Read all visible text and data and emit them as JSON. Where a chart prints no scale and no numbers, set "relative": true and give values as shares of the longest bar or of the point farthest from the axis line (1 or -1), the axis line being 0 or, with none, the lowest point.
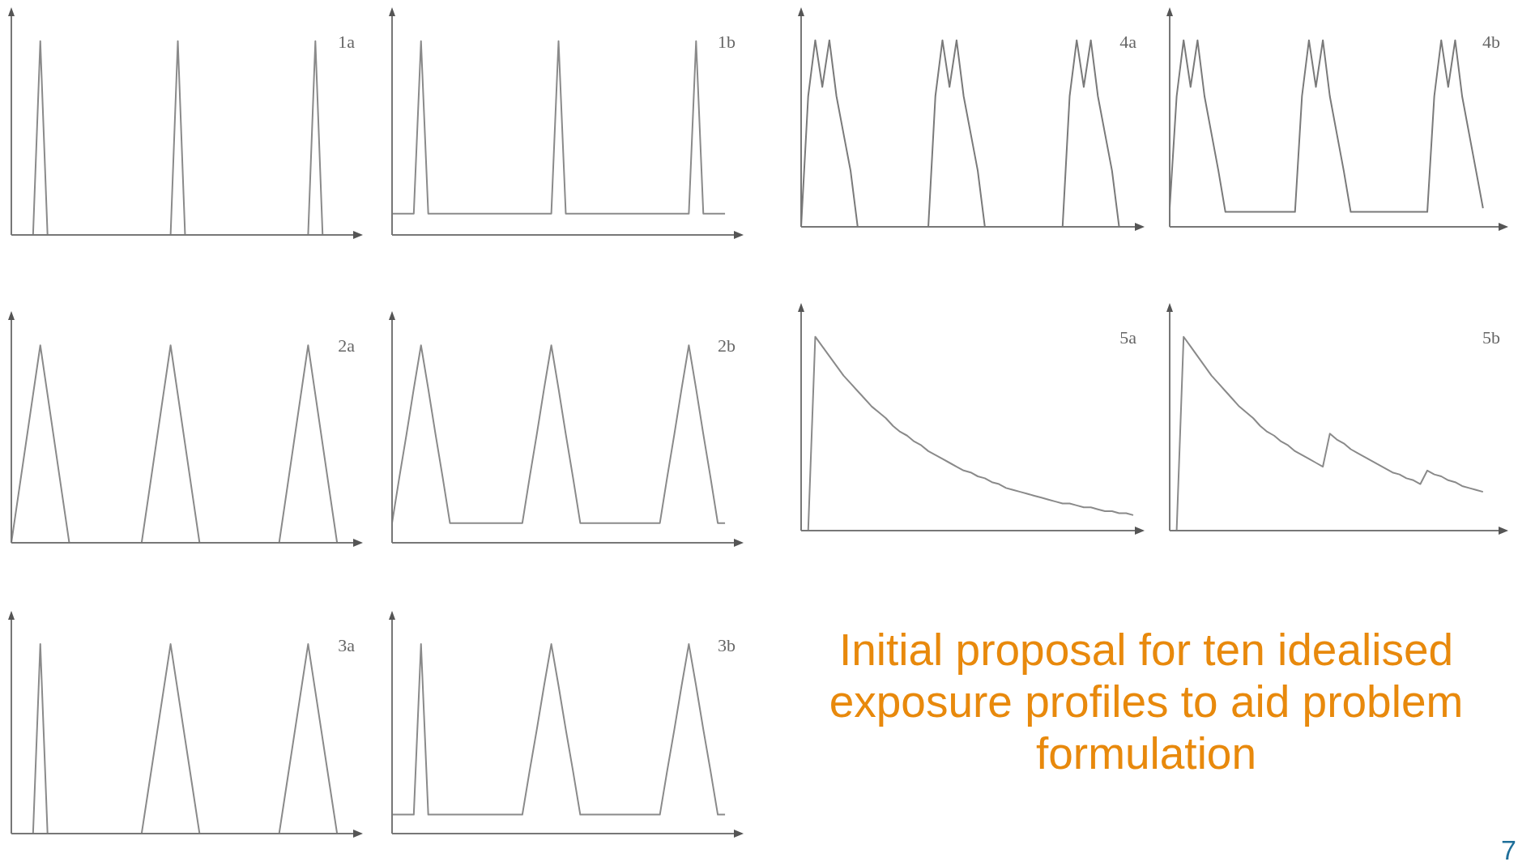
{
  "chart_data": [
    {
      "type": "line",
      "title": "1a",
      "relative": true,
      "tick_labels": false,
      "categories": [
        null,
        null,
        null,
        null,
        null,
        null,
        null,
        null,
        null,
        null,
        null,
        null,
        null,
        null,
        null,
        null,
        null,
        null,
        null,
        null,
        null,
        null,
        null,
        null,
        null,
        null,
        null,
        null,
        null,
        null,
        null,
        null,
        null,
        null,
        null,
        null,
        null,
        null,
        null,
        null,
        null,
        null,
        null,
        null,
        null,
        null,
        null,
        null
      ],
      "series": [
        {
          "color": "#8a8a8a",
          "values": [
            0,
            0,
            0,
            0,
            1,
            0,
            0,
            0,
            0,
            0,
            0,
            0,
            0,
            0,
            0,
            0,
            0,
            0,
            0,
            0,
            0,
            0,
            0,
            1,
            0,
            0,
            0,
            0,
            0,
            0,
            0,
            0,
            0,
            0,
            0,
            0,
            0,
            0,
            0,
            0,
            0,
            0,
            1,
            0,
            0,
            0,
            0,
            0
          ]
        }
      ]
    },
    {
      "type": "line",
      "title": "1b",
      "relative": true,
      "tick_labels": false,
      "categories": [
        null,
        null,
        null,
        null,
        null,
        null,
        null,
        null,
        null,
        null,
        null,
        null,
        null,
        null,
        null,
        null,
        null,
        null,
        null,
        null,
        null,
        null,
        null,
        null,
        null,
        null,
        null,
        null,
        null,
        null,
        null,
        null,
        null,
        null,
        null,
        null,
        null,
        null,
        null,
        null,
        null,
        null,
        null,
        null,
        null,
        null,
        null,
        null
      ],
      "series": [
        {
          "color": "#8a8a8a",
          "values": [
            0.11,
            0.11,
            0.11,
            0.11,
            1,
            0.11,
            0.11,
            0.11,
            0.11,
            0.11,
            0.11,
            0.11,
            0.11,
            0.11,
            0.11,
            0.11,
            0.11,
            0.11,
            0.11,
            0.11,
            0.11,
            0.11,
            0.11,
            1,
            0.11,
            0.11,
            0.11,
            0.11,
            0.11,
            0.11,
            0.11,
            0.11,
            0.11,
            0.11,
            0.11,
            0.11,
            0.11,
            0.11,
            0.11,
            0.11,
            0.11,
            0.11,
            1,
            0.11,
            0.11,
            0.11,
            0.11,
            null
          ]
        }
      ]
    },
    {
      "type": "line",
      "title": "2a",
      "relative": true,
      "tick_labels": false,
      "categories": [
        null,
        null,
        null,
        null,
        null,
        null,
        null,
        null,
        null,
        null,
        null,
        null,
        null,
        null,
        null,
        null,
        null,
        null,
        null,
        null,
        null,
        null,
        null,
        null,
        null,
        null,
        null,
        null,
        null,
        null,
        null,
        null,
        null,
        null,
        null,
        null,
        null,
        null,
        null,
        null,
        null,
        null,
        null,
        null,
        null,
        null,
        null,
        null
      ],
      "series": [
        {
          "color": "#8a8a8a",
          "values": [
            0,
            0.25,
            0.5,
            0.75,
            1,
            0.75,
            0.5,
            0.25,
            0,
            0,
            0,
            0,
            0,
            0,
            0,
            0,
            0,
            0,
            0,
            0.25,
            0.5,
            0.75,
            1,
            0.75,
            0.5,
            0.25,
            0,
            0,
            0,
            0,
            0,
            0,
            0,
            0,
            0,
            0,
            0,
            0,
            0.25,
            0.5,
            0.75,
            1,
            0.75,
            0.5,
            0.25,
            0,
            0,
            0
          ]
        }
      ]
    },
    {
      "type": "line",
      "title": "2b",
      "relative": true,
      "tick_labels": false,
      "categories": [
        null,
        null,
        null,
        null,
        null,
        null,
        null,
        null,
        null,
        null,
        null,
        null,
        null,
        null,
        null,
        null,
        null,
        null,
        null,
        null,
        null,
        null,
        null,
        null,
        null,
        null,
        null,
        null,
        null,
        null,
        null,
        null,
        null,
        null,
        null,
        null,
        null,
        null,
        null,
        null,
        null,
        null,
        null,
        null,
        null,
        null,
        null,
        null
      ],
      "series": [
        {
          "color": "#8a8a8a",
          "values": [
            0.1,
            0.33,
            0.55,
            0.78,
            1,
            0.78,
            0.55,
            0.33,
            0.1,
            0.1,
            0.1,
            0.1,
            0.1,
            0.1,
            0.1,
            0.1,
            0.1,
            0.1,
            0.1,
            0.33,
            0.55,
            0.78,
            1,
            0.78,
            0.55,
            0.33,
            0.1,
            0.1,
            0.1,
            0.1,
            0.1,
            0.1,
            0.1,
            0.1,
            0.1,
            0.1,
            0.1,
            0.1,
            0.33,
            0.55,
            0.78,
            1,
            0.78,
            0.55,
            0.33,
            0.1,
            0.1,
            null
          ]
        }
      ]
    },
    {
      "type": "line",
      "title": "3a",
      "relative": true,
      "tick_labels": false,
      "categories": [
        null,
        null,
        null,
        null,
        null,
        null,
        null,
        null,
        null,
        null,
        null,
        null,
        null,
        null,
        null,
        null,
        null,
        null,
        null,
        null,
        null,
        null,
        null,
        null,
        null,
        null,
        null,
        null,
        null,
        null,
        null,
        null,
        null,
        null,
        null,
        null,
        null,
        null,
        null,
        null,
        null,
        null,
        null,
        null,
        null,
        null,
        null,
        null
      ],
      "series": [
        {
          "color": "#8a8a8a",
          "values": [
            0,
            0,
            0,
            0,
            1,
            0,
            0,
            0,
            0,
            0,
            0,
            0,
            0,
            0,
            0,
            0,
            0,
            0,
            0,
            0.25,
            0.5,
            0.75,
            1,
            0.75,
            0.5,
            0.25,
            0,
            0,
            0,
            0,
            0,
            0,
            0,
            0,
            0,
            0,
            0,
            0,
            0.25,
            0.5,
            0.75,
            1,
            0.75,
            0.5,
            0.25,
            0,
            0,
            0
          ]
        }
      ]
    },
    {
      "type": "line",
      "title": "3b",
      "relative": true,
      "tick_labels": false,
      "categories": [
        null,
        null,
        null,
        null,
        null,
        null,
        null,
        null,
        null,
        null,
        null,
        null,
        null,
        null,
        null,
        null,
        null,
        null,
        null,
        null,
        null,
        null,
        null,
        null,
        null,
        null,
        null,
        null,
        null,
        null,
        null,
        null,
        null,
        null,
        null,
        null,
        null,
        null,
        null,
        null,
        null,
        null,
        null,
        null,
        null,
        null,
        null,
        null
      ],
      "series": [
        {
          "color": "#8a8a8a",
          "values": [
            0.1,
            0.1,
            0.1,
            0.1,
            1,
            0.1,
            0.1,
            0.1,
            0.1,
            0.1,
            0.1,
            0.1,
            0.1,
            0.1,
            0.1,
            0.1,
            0.1,
            0.1,
            0.1,
            0.33,
            0.55,
            0.78,
            1,
            0.78,
            0.55,
            0.33,
            0.1,
            0.1,
            0.1,
            0.1,
            0.1,
            0.1,
            0.1,
            0.1,
            0.1,
            0.1,
            0.1,
            0.1,
            0.33,
            0.55,
            0.78,
            1,
            0.78,
            0.55,
            0.33,
            0.1,
            0.1,
            null
          ]
        }
      ]
    },
    {
      "type": "line",
      "title": "4a",
      "relative": true,
      "tick_labels": false,
      "categories": [
        null,
        null,
        null,
        null,
        null,
        null,
        null,
        null,
        null,
        null,
        null,
        null,
        null,
        null,
        null,
        null,
        null,
        null,
        null,
        null,
        null,
        null,
        null,
        null,
        null,
        null,
        null,
        null,
        null,
        null,
        null,
        null,
        null,
        null,
        null,
        null,
        null,
        null,
        null,
        null,
        null,
        null,
        null,
        null,
        null,
        null,
        null,
        null
      ],
      "series": [
        {
          "color": "#7a7a7a",
          "values": [
            0,
            0.7,
            1,
            0.75,
            1,
            0.7,
            0.5,
            0.3,
            0,
            0,
            0,
            0,
            0,
            0,
            0,
            0,
            0,
            0,
            0,
            0.7,
            1,
            0.75,
            1,
            0.7,
            0.5,
            0.3,
            0,
            0,
            0,
            0,
            0,
            0,
            0,
            0,
            0,
            0,
            0,
            0,
            0.7,
            1,
            0.75,
            1,
            0.7,
            0.5,
            0.3,
            0,
            null,
            null
          ]
        }
      ]
    },
    {
      "type": "line",
      "title": "4b",
      "relative": true,
      "tick_labels": false,
      "categories": [
        null,
        null,
        null,
        null,
        null,
        null,
        null,
        null,
        null,
        null,
        null,
        null,
        null,
        null,
        null,
        null,
        null,
        null,
        null,
        null,
        null,
        null,
        null,
        null,
        null,
        null,
        null,
        null,
        null,
        null,
        null,
        null,
        null,
        null,
        null,
        null,
        null,
        null,
        null,
        null,
        null,
        null,
        null,
        null,
        null,
        null,
        null,
        null
      ],
      "series": [
        {
          "color": "#7a7a7a",
          "values": [
            0.1,
            0.7,
            1,
            0.75,
            1,
            0.7,
            0.5,
            0.3,
            0.08,
            0.08,
            0.08,
            0.08,
            0.08,
            0.08,
            0.08,
            0.08,
            0.08,
            0.08,
            0.08,
            0.7,
            1,
            0.75,
            1,
            0.7,
            0.5,
            0.3,
            0.08,
            0.08,
            0.08,
            0.08,
            0.08,
            0.08,
            0.08,
            0.08,
            0.08,
            0.08,
            0.08,
            0.08,
            0.7,
            1,
            0.75,
            1,
            0.7,
            0.5,
            0.3,
            0.1,
            null,
            null
          ]
        }
      ]
    },
    {
      "type": "line",
      "title": "5a",
      "relative": true,
      "tick_labels": false,
      "categories": [
        null,
        null,
        null,
        null,
        null,
        null,
        null,
        null,
        null,
        null,
        null,
        null,
        null,
        null,
        null,
        null,
        null,
        null,
        null,
        null,
        null,
        null,
        null,
        null,
        null,
        null,
        null,
        null,
        null,
        null,
        null,
        null,
        null,
        null,
        null,
        null,
        null,
        null,
        null,
        null,
        null,
        null,
        null,
        null,
        null,
        null,
        null,
        null
      ],
      "series": [
        {
          "color": "#8a8a8a",
          "values": [
            0,
            0,
            1,
            0.95,
            0.9,
            0.85,
            0.8,
            0.76,
            0.72,
            0.68,
            0.64,
            0.61,
            0.58,
            0.54,
            0.51,
            0.49,
            0.46,
            0.44,
            0.41,
            0.39,
            0.37,
            0.35,
            0.33,
            0.31,
            0.3,
            0.28,
            0.27,
            0.25,
            0.24,
            0.22,
            0.21,
            0.2,
            0.19,
            0.18,
            0.17,
            0.16,
            0.15,
            0.14,
            0.14,
            0.13,
            0.12,
            0.12,
            0.11,
            0.1,
            0.1,
            0.09,
            0.09,
            0.08
          ]
        }
      ]
    },
    {
      "type": "line",
      "title": "5b",
      "relative": true,
      "tick_labels": false,
      "categories": [
        null,
        null,
        null,
        null,
        null,
        null,
        null,
        null,
        null,
        null,
        null,
        null,
        null,
        null,
        null,
        null,
        null,
        null,
        null,
        null,
        null,
        null,
        null,
        null,
        null,
        null,
        null,
        null,
        null,
        null,
        null,
        null,
        null,
        null,
        null,
        null,
        null,
        null,
        null,
        null,
        null,
        null,
        null,
        null,
        null,
        null,
        null,
        null
      ],
      "series": [
        {
          "color": "#8a8a8a",
          "values": [
            0,
            0,
            1,
            0.95,
            0.9,
            0.85,
            0.8,
            0.76,
            0.72,
            0.68,
            0.64,
            0.61,
            0.58,
            0.54,
            0.51,
            0.49,
            0.46,
            0.44,
            0.41,
            0.39,
            0.37,
            0.35,
            0.33,
            0.5,
            0.47,
            0.45,
            0.42,
            0.4,
            0.38,
            0.36,
            0.34,
            0.32,
            0.3,
            0.29,
            0.27,
            0.26,
            0.24,
            0.31,
            0.29,
            0.28,
            0.26,
            0.25,
            0.23,
            0.22,
            0.21,
            0.2,
            null,
            null
          ]
        }
      ]
    },
    {
      "type": "other",
      "annotations": [
        "Initial proposal for ten idealised exposure profiles to aid problem formulation",
        "7"
      ]
    }
  ]
}
